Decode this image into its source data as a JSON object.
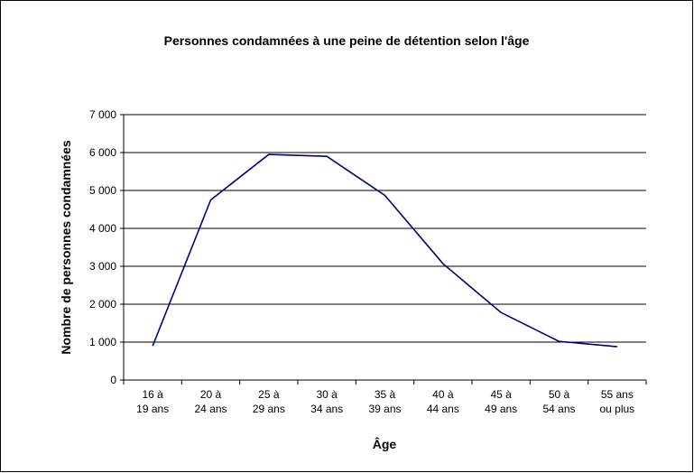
{
  "chart_data": {
    "type": "line",
    "title": "Personnes condamnées à une peine de détention selon l'âge",
    "x_label": "Âge",
    "y_label": "Nombre de personnes condamnées",
    "categories": [
      "16 à 19 ans",
      "20 à 24 ans",
      "25 à 29 ans",
      "30 à 34 ans",
      "35 à 39 ans",
      "40 à 44 ans",
      "45 à 49 ans",
      "50 à 54 ans",
      "55 ans ou plus"
    ],
    "series": [
      {
        "name": "Personnes condamnées",
        "color": "#000080",
        "values": [
          900,
          4750,
          5950,
          5900,
          4870,
          3070,
          1780,
          1020,
          880
        ]
      }
    ],
    "ylim": [
      0,
      7000
    ],
    "yticks": [
      0,
      {
        "value": 1000,
        "label": "1 000"
      },
      {
        "value": 2000,
        "label": "2 000"
      },
      {
        "value": 3000,
        "label": "3 000"
      },
      {
        "value": 4000,
        "label": "4 000"
      },
      {
        "value": 5000,
        "label": "5 000"
      },
      {
        "value": 6000,
        "label": "6 000"
      },
      {
        "value": 7000,
        "label": "7 000"
      }
    ],
    "grid": true
  }
}
